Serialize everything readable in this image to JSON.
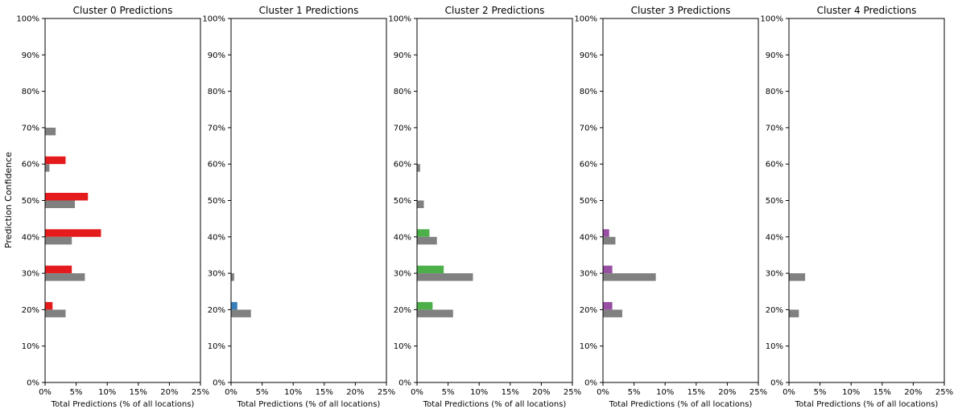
{
  "figure": {
    "shared_ylabel": "Prediction Confidence"
  },
  "chart_data": [
    {
      "type": "bar",
      "orientation": "horizontal",
      "title": "Cluster 0 Predictions",
      "xlabel": "Total Predictions (% of all locations)",
      "ylabel": "Prediction Confidence",
      "xlim": [
        0,
        25
      ],
      "ylim": [
        0,
        100
      ],
      "xticks": [
        "0%",
        "5%",
        "10%",
        "15%",
        "20%",
        "25%"
      ],
      "yticks": [
        "0%",
        "10%",
        "20%",
        "30%",
        "40%",
        "50%",
        "60%",
        "70%",
        "80%",
        "90%",
        "100%"
      ],
      "categories": [
        20,
        30,
        40,
        50,
        60,
        70
      ],
      "series": [
        {
          "values": [
            1.2,
            4.3,
            9.0,
            6.9,
            3.3,
            0
          ],
          "color": "#e41a1c"
        },
        {
          "values": [
            3.3,
            6.4,
            4.3,
            4.8,
            0.7,
            1.7
          ],
          "color": "#808080"
        }
      ]
    },
    {
      "type": "bar",
      "orientation": "horizontal",
      "title": "Cluster 1 Predictions",
      "xlabel": "Total Predictions (% of all locations)",
      "xlim": [
        0,
        25
      ],
      "ylim": [
        0,
        100
      ],
      "xticks": [
        "0%",
        "5%",
        "10%",
        "15%",
        "20%",
        "25%"
      ],
      "yticks": [
        "0%",
        "10%",
        "20%",
        "30%",
        "40%",
        "50%",
        "60%",
        "70%",
        "80%",
        "90%",
        "100%"
      ],
      "categories": [
        20,
        30
      ],
      "series": [
        {
          "values": [
            1.0,
            0
          ],
          "color": "#377eb8"
        },
        {
          "values": [
            3.2,
            0.5
          ],
          "color": "#808080"
        }
      ]
    },
    {
      "type": "bar",
      "orientation": "horizontal",
      "title": "Cluster 2 Predictions",
      "xlabel": "Total Predictions (% of all locations)",
      "xlim": [
        0,
        25
      ],
      "ylim": [
        0,
        100
      ],
      "xticks": [
        "0%",
        "5%",
        "10%",
        "15%",
        "20%",
        "25%"
      ],
      "yticks": [
        "0%",
        "10%",
        "20%",
        "30%",
        "40%",
        "50%",
        "60%",
        "70%",
        "80%",
        "90%",
        "100%"
      ],
      "categories": [
        20,
        30,
        40,
        50,
        60
      ],
      "series": [
        {
          "values": [
            2.5,
            4.3,
            2.0,
            0,
            0
          ],
          "color": "#4daf4a"
        },
        {
          "values": [
            5.8,
            9.0,
            3.2,
            1.1,
            0.5
          ],
          "color": "#808080"
        }
      ]
    },
    {
      "type": "bar",
      "orientation": "horizontal",
      "title": "Cluster 3 Predictions",
      "xlabel": "Total Predictions (% of all locations)",
      "xlim": [
        0,
        25
      ],
      "ylim": [
        0,
        100
      ],
      "xticks": [
        "0%",
        "5%",
        "10%",
        "15%",
        "20%",
        "25%"
      ],
      "yticks": [
        "0%",
        "10%",
        "20%",
        "30%",
        "40%",
        "50%",
        "60%",
        "70%",
        "80%",
        "90%",
        "100%"
      ],
      "categories": [
        20,
        30,
        40
      ],
      "series": [
        {
          "values": [
            1.5,
            1.5,
            1.0
          ],
          "color": "#984ea3"
        },
        {
          "values": [
            3.1,
            8.5,
            2.0
          ],
          "color": "#808080"
        }
      ]
    },
    {
      "type": "bar",
      "orientation": "horizontal",
      "title": "Cluster 4 Predictions",
      "xlabel": "Total Predictions (% of all locations)",
      "xlim": [
        0,
        25
      ],
      "ylim": [
        0,
        100
      ],
      "xticks": [
        "0%",
        "5%",
        "10%",
        "15%",
        "20%",
        "25%"
      ],
      "yticks": [
        "0%",
        "10%",
        "20%",
        "30%",
        "40%",
        "50%",
        "60%",
        "70%",
        "80%",
        "90%",
        "100%"
      ],
      "categories": [
        20,
        30
      ],
      "series": [
        {
          "values": [
            0,
            0
          ],
          "color": "#ff7f00"
        },
        {
          "values": [
            1.6,
            2.6
          ],
          "color": "#808080"
        }
      ]
    }
  ]
}
